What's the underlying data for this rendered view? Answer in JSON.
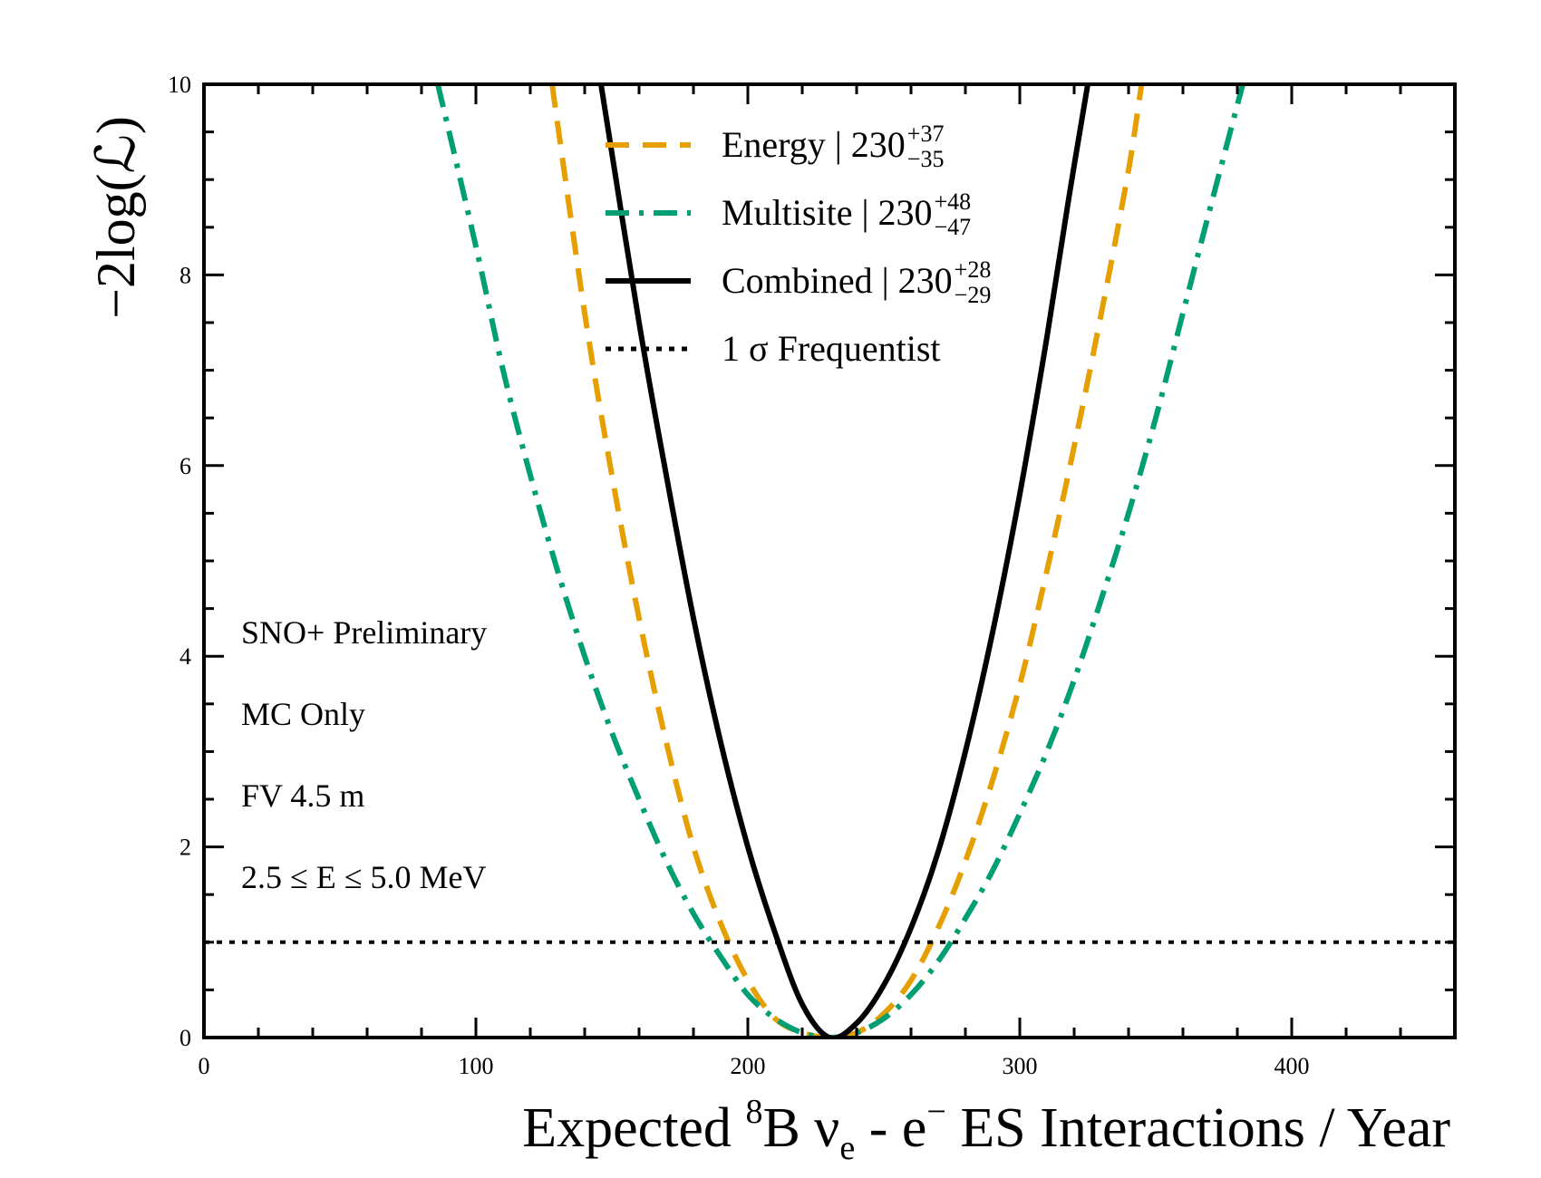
{
  "chart_data": {
    "type": "line",
    "title": "",
    "xlabel": {
      "prefix": "Expected ",
      "b_sup": "8",
      "b": "B ν",
      "nu_sub": "e",
      "mid": " - e",
      "e_sup": "−",
      "suffix": "  ES  Interactions / Year"
    },
    "ylabel": "−2log(ℒ)",
    "xlim": [
      0,
      460
    ],
    "ylim": [
      0,
      10
    ],
    "xticks": [
      0,
      100,
      200,
      300,
      400
    ],
    "yticks": [
      0,
      2,
      4,
      6,
      8,
      10
    ],
    "grid": false,
    "legend_position": "top-center",
    "series": [
      {
        "name": "Energy",
        "legend_label": "Energy | 230",
        "sup": "+37",
        "sub": "−35",
        "color": "#E69F00",
        "style": "dashed",
        "best_fit": 230,
        "x": [
          128,
          140,
          150,
          160,
          170,
          180,
          190,
          200,
          210,
          220,
          230,
          240,
          250,
          260,
          270,
          280,
          290,
          300,
          310,
          320,
          330,
          340,
          350,
          356
        ],
        "y": [
          10.0,
          7.6,
          5.9,
          4.4,
          3.1,
          2.0,
          1.2,
          0.6,
          0.2,
          0.05,
          0.0,
          0.05,
          0.25,
          0.6,
          1.15,
          1.85,
          2.7,
          3.7,
          4.9,
          6.2,
          7.6,
          9.1,
          10.8,
          10.0
        ]
      },
      {
        "name": "Multisite",
        "legend_label": "Multisite | 230",
        "sup": "+48",
        "sub": "−47",
        "color": "#009E73",
        "style": "dashdot",
        "best_fit": 230,
        "x": [
          86,
          100,
          110,
          120,
          130,
          140,
          150,
          160,
          170,
          180,
          190,
          200,
          210,
          220,
          230,
          240,
          250,
          260,
          270,
          280,
          290,
          300,
          310,
          320,
          330,
          340,
          350,
          360,
          370,
          382
        ],
        "y": [
          10.0,
          8.3,
          7.0,
          5.9,
          4.9,
          4.0,
          3.2,
          2.5,
          1.85,
          1.3,
          0.85,
          0.45,
          0.2,
          0.05,
          0.0,
          0.05,
          0.2,
          0.45,
          0.8,
          1.25,
          1.75,
          2.35,
          3.0,
          3.75,
          4.6,
          5.5,
          6.5,
          7.6,
          8.7,
          10.0
        ]
      },
      {
        "name": "Combined",
        "legend_label": "Combined | 230",
        "sup": "+28",
        "sub": "−29",
        "color": "#000000",
        "style": "solid",
        "best_fit": 230,
        "x": [
          146,
          160,
          170,
          180,
          190,
          200,
          210,
          220,
          230,
          240,
          250,
          260,
          270,
          280,
          290,
          300,
          310,
          318,
          325
        ],
        "y": [
          10.0,
          7.5,
          5.9,
          4.4,
          3.1,
          2.0,
          1.1,
          0.35,
          0.0,
          0.15,
          0.55,
          1.15,
          1.95,
          3.0,
          4.25,
          5.7,
          7.35,
          8.8,
          10.0
        ]
      }
    ],
    "reference_line": {
      "name": "1 σ Frequentist",
      "y": 1,
      "color": "#000000",
      "style": "dotted"
    },
    "annotations": [
      "SNO+ Preliminary",
      "MC Only",
      "FV 4.5 m",
      "2.5  ≤  E  ≤  5.0 MeV"
    ]
  }
}
